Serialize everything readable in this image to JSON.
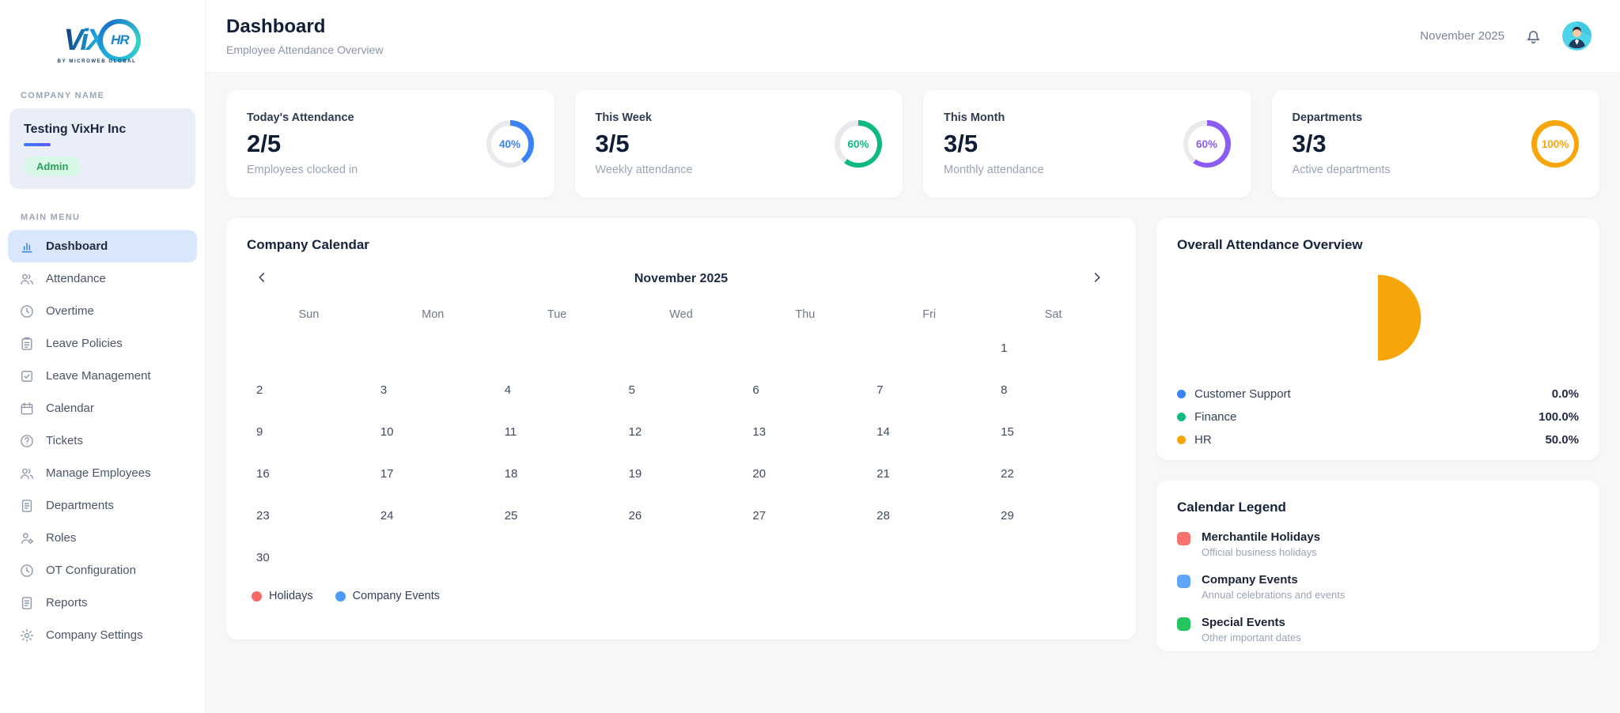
{
  "sidebar": {
    "logo": {
      "brand_vix": "ViX",
      "brand_hr": "HR",
      "tagline": "BY MICROWEB GLOBAL"
    },
    "company_section_label": "COMPANY NAME",
    "company": {
      "name": "Testing VixHr Inc",
      "role_badge": "Admin"
    },
    "menu_section_label": "MAIN MENU",
    "menu_items": [
      {
        "label": "Dashboard",
        "icon": "bar-chart-icon",
        "active": true
      },
      {
        "label": "Attendance",
        "icon": "users-icon",
        "active": false
      },
      {
        "label": "Overtime",
        "icon": "clock-arrow-icon",
        "active": false
      },
      {
        "label": "Leave Policies",
        "icon": "clipboard-icon",
        "active": false
      },
      {
        "label": "Leave Management",
        "icon": "check-square-icon",
        "active": false
      },
      {
        "label": "Calendar",
        "icon": "calendar-icon",
        "active": false
      },
      {
        "label": "Tickets",
        "icon": "help-circle-icon",
        "active": false
      },
      {
        "label": "Manage Employees",
        "icon": "users-icon",
        "active": false
      },
      {
        "label": "Departments",
        "icon": "document-icon",
        "active": false
      },
      {
        "label": "Roles",
        "icon": "user-gear-icon",
        "active": false
      },
      {
        "label": "OT Configuration",
        "icon": "clock-icon",
        "active": false
      },
      {
        "label": "Reports",
        "icon": "document-icon",
        "active": false
      },
      {
        "label": "Company Settings",
        "icon": "gear-icon",
        "active": false
      }
    ]
  },
  "header": {
    "title": "Dashboard",
    "subtitle": "Employee Attendance Overview",
    "period": "November 2025"
  },
  "stat_cards": [
    {
      "label": "Today's Attendance",
      "value": "2/5",
      "sublabel": "Employees clocked in",
      "percent": 40,
      "percent_label": "40%",
      "color": "#3B82F6"
    },
    {
      "label": "This Week",
      "value": "3/5",
      "sublabel": "Weekly attendance",
      "percent": 60,
      "percent_label": "60%",
      "color": "#10B981"
    },
    {
      "label": "This Month",
      "value": "3/5",
      "sublabel": "Monthly attendance",
      "percent": 60,
      "percent_label": "60%",
      "color": "#8B5CF6"
    },
    {
      "label": "Departments",
      "value": "3/3",
      "sublabel": "Active departments",
      "percent": 100,
      "percent_label": "100%",
      "color": "#F6A60B"
    }
  ],
  "calendar": {
    "title": "Company Calendar",
    "month_label": "November 2025",
    "weekdays": [
      "Sun",
      "Mon",
      "Tue",
      "Wed",
      "Thu",
      "Fri",
      "Sat"
    ],
    "weeks": [
      [
        "",
        "",
        "",
        "",
        "",
        "",
        "1"
      ],
      [
        "2",
        "3",
        "4",
        "5",
        "6",
        "7",
        "8"
      ],
      [
        "9",
        "10",
        "11",
        "12",
        "13",
        "14",
        "15"
      ],
      [
        "16",
        "17",
        "18",
        "19",
        "20",
        "21",
        "22"
      ],
      [
        "23",
        "24",
        "25",
        "26",
        "27",
        "28",
        "29"
      ],
      [
        "30",
        "",
        "",
        "",
        "",
        "",
        ""
      ]
    ],
    "legend": [
      {
        "label": "Holidays",
        "color": "#F76A6A"
      },
      {
        "label": "Company Events",
        "color": "#4D9AF8"
      }
    ]
  },
  "chart_data": {
    "type": "pie",
    "title": "Overall Attendance Overview",
    "labels": [
      "Customer Support",
      "Finance",
      "HR"
    ],
    "values": [
      0.0,
      100.0,
      50.0
    ],
    "value_labels": [
      "0.0%",
      "100.0%",
      "50.0%"
    ],
    "colors": [
      "#3B82F6",
      "#10B981",
      "#F6A60B"
    ],
    "rendered_shape": "orange right half-circle segment, flat edge vertical at center",
    "legend_position": "bottom"
  },
  "calendar_legend": {
    "title": "Calendar Legend",
    "items": [
      {
        "label": "Merchantile Holidays",
        "description": "Official business holidays",
        "color": "#F87171"
      },
      {
        "label": "Company Events",
        "description": "Annual celebrations and events",
        "color": "#60A5FA"
      },
      {
        "label": "Special Events",
        "description": "Other important dates",
        "color": "#22C55E"
      }
    ]
  }
}
